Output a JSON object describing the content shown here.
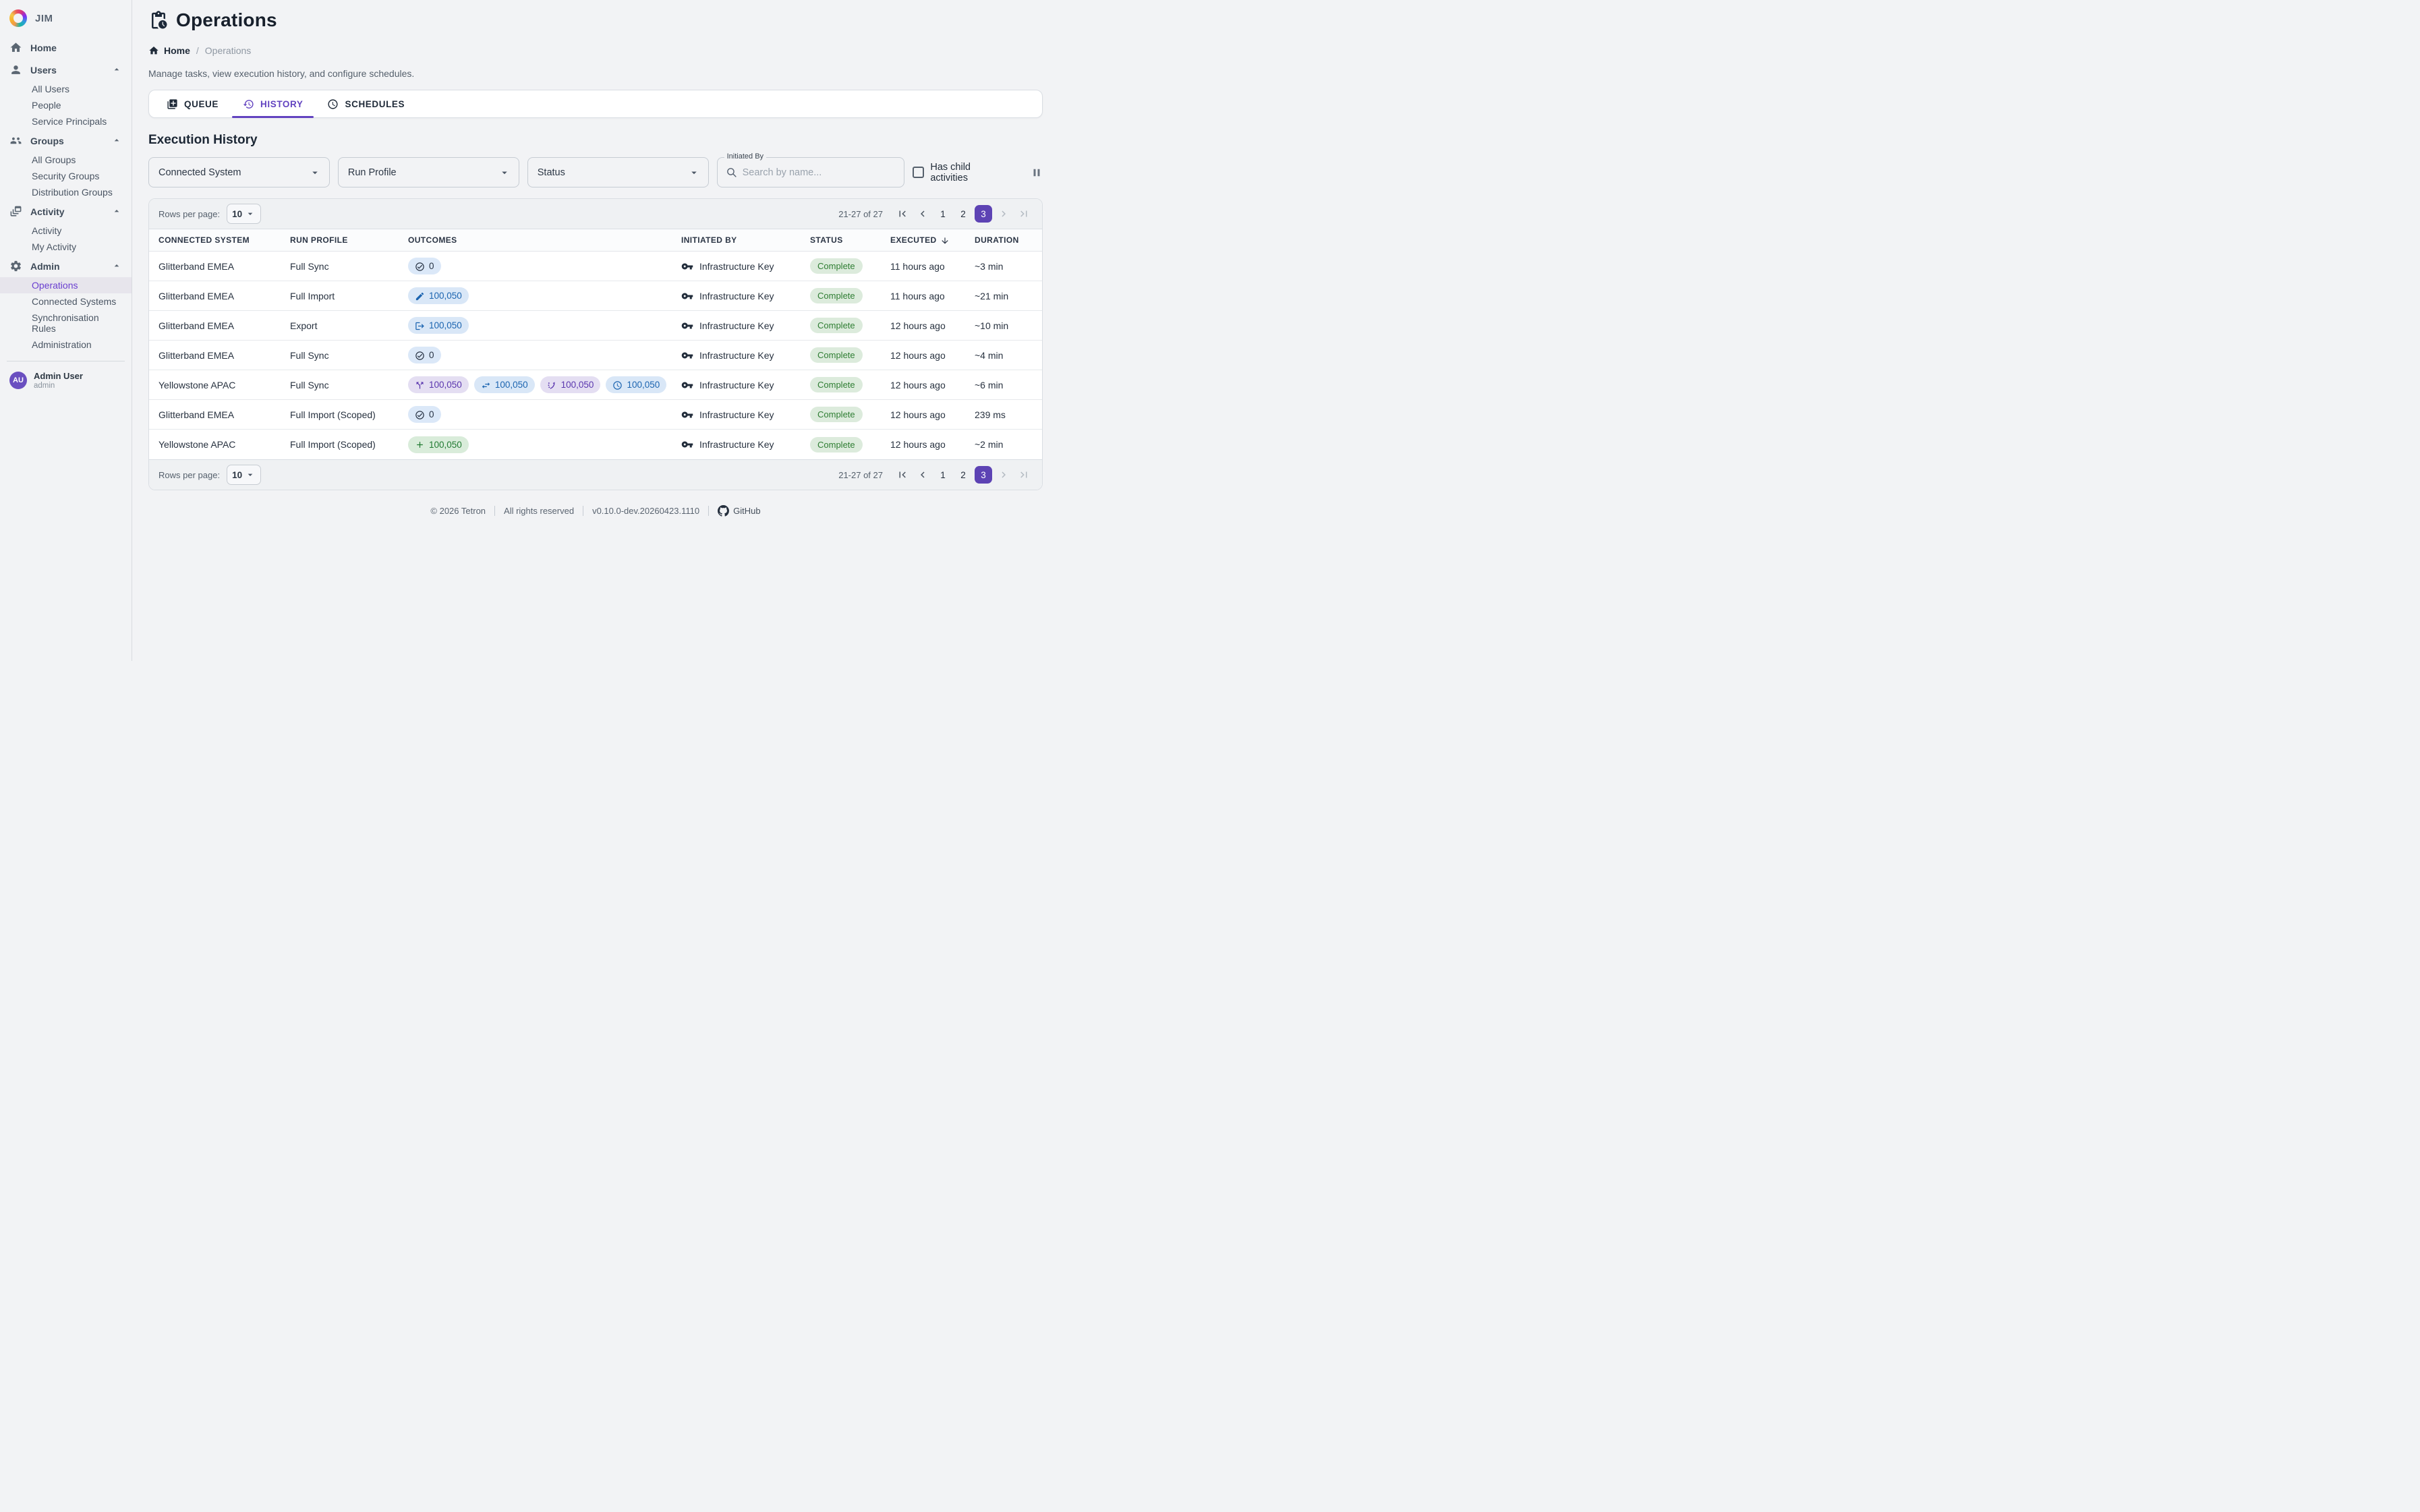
{
  "app": {
    "brand": "JIM"
  },
  "sidebar": {
    "nav": [
      {
        "label": "Home",
        "icon": "home"
      },
      {
        "label": "Users",
        "icon": "person",
        "expanded": true,
        "children": [
          "All Users",
          "People",
          "Service Principals"
        ]
      },
      {
        "label": "Groups",
        "icon": "groups",
        "expanded": true,
        "children": [
          "All Groups",
          "Security Groups",
          "Distribution Groups"
        ]
      },
      {
        "label": "Activity",
        "icon": "feed",
        "expanded": true,
        "children": [
          "Activity",
          "My Activity"
        ]
      },
      {
        "label": "Admin",
        "icon": "gear",
        "expanded": true,
        "children": [
          "Operations",
          "Connected Systems",
          "Synchronisation Rules",
          "Administration"
        ],
        "active_child": "Operations"
      }
    ],
    "user": {
      "initials": "AU",
      "name": "Admin User",
      "role": "admin"
    }
  },
  "header": {
    "title": "Operations",
    "breadcrumb_home": "Home",
    "breadcrumb_current": "Operations",
    "subtitle": "Manage tasks, view execution history, and configure schedules."
  },
  "tabs": [
    {
      "label": "QUEUE",
      "icon": "queue",
      "active": false
    },
    {
      "label": "HISTORY",
      "icon": "history",
      "active": true
    },
    {
      "label": "SCHEDULES",
      "icon": "schedule",
      "active": false
    }
  ],
  "section_title": "Execution History",
  "filters": {
    "connected_system_label": "Connected System",
    "run_profile_label": "Run Profile",
    "status_label": "Status",
    "initiated_by_label": "Initiated By",
    "search_placeholder": "Search by name...",
    "has_child_activities_label": "Has child activities"
  },
  "table": {
    "rows_per_page_label": "Rows per page:",
    "rows_per_page_value": "10",
    "columns": [
      "CONNECTED SYSTEM",
      "RUN PROFILE",
      "OUTCOMES",
      "INITIATED BY",
      "STATUS",
      "EXECUTED",
      "DURATION"
    ],
    "sorted_column": "EXECUTED",
    "pagination": {
      "range": "21-27 of 27",
      "pages": [
        "1",
        "2",
        "3"
      ],
      "active_page": "3"
    },
    "rows": [
      {
        "system": "Glitterband EMEA",
        "profile": "Full Sync",
        "outcomes": [
          {
            "icon": "check-circle",
            "count": "0",
            "variant": "neutral"
          }
        ],
        "initiated_by": "Infrastructure Key",
        "status": "Complete",
        "executed": "11 hours ago",
        "duration": "~3 min"
      },
      {
        "system": "Glitterband EMEA",
        "profile": "Full Import",
        "outcomes": [
          {
            "icon": "pencil",
            "count": "100,050",
            "variant": "blue"
          }
        ],
        "initiated_by": "Infrastructure Key",
        "status": "Complete",
        "executed": "11 hours ago",
        "duration": "~21 min"
      },
      {
        "system": "Glitterband EMEA",
        "profile": "Export",
        "outcomes": [
          {
            "icon": "export",
            "count": "100,050",
            "variant": "blue"
          }
        ],
        "initiated_by": "Infrastructure Key",
        "status": "Complete",
        "executed": "12 hours ago",
        "duration": "~10 min"
      },
      {
        "system": "Glitterband EMEA",
        "profile": "Full Sync",
        "outcomes": [
          {
            "icon": "check-circle",
            "count": "0",
            "variant": "neutral"
          }
        ],
        "initiated_by": "Infrastructure Key",
        "status": "Complete",
        "executed": "12 hours ago",
        "duration": "~4 min"
      },
      {
        "system": "Yellowstone APAC",
        "profile": "Full Sync",
        "outcomes": [
          {
            "icon": "split-arrow",
            "count": "100,050",
            "variant": "purple"
          },
          {
            "icon": "sync-arrows",
            "count": "100,050",
            "variant": "blue"
          },
          {
            "icon": "sparkle-arrow",
            "count": "100,050",
            "variant": "purple"
          },
          {
            "icon": "clock",
            "count": "100,050",
            "variant": "blue"
          }
        ],
        "initiated_by": "Infrastructure Key",
        "status": "Complete",
        "executed": "12 hours ago",
        "duration": "~6 min"
      },
      {
        "system": "Glitterband EMEA",
        "profile": "Full Import (Scoped)",
        "outcomes": [
          {
            "icon": "check-circle",
            "count": "0",
            "variant": "neutral"
          }
        ],
        "initiated_by": "Infrastructure Key",
        "status": "Complete",
        "executed": "12 hours ago",
        "duration": "239 ms"
      },
      {
        "system": "Yellowstone APAC",
        "profile": "Full Import (Scoped)",
        "outcomes": [
          {
            "icon": "plus",
            "count": "100,050",
            "variant": "green"
          }
        ],
        "initiated_by": "Infrastructure Key",
        "status": "Complete",
        "executed": "12 hours ago",
        "duration": "~2 min"
      }
    ]
  },
  "footer": {
    "copyright": "© 2026 Tetron",
    "rights": "All rights reserved",
    "version": "v0.10.0-dev.20260423.1110",
    "github_label": "GitHub"
  },
  "colors": {
    "accent": "#5d43b4",
    "sidebar_active": "#6a3fd0",
    "complete_bg": "#dcebdc",
    "complete_fg": "#2e7d32",
    "pill_blue_bg": "#d9e7f7",
    "pill_blue_fg": "#1b64b0",
    "pill_neutral_bg": "#dbe8f8",
    "pill_neutral_fg": "#273243",
    "pill_purple_bg": "#e4def2",
    "pill_purple_fg": "#5a36ae",
    "pill_green_bg": "#d9ecda",
    "pill_green_fg": "#217a32"
  }
}
